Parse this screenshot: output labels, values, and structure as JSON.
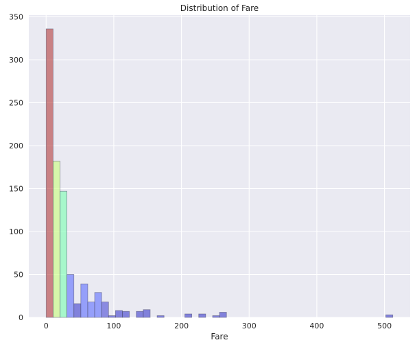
{
  "chart_data": {
    "type": "bar",
    "subtype": "histogram",
    "title": "Distribution of Fare",
    "xlabel": "Fare",
    "ylabel": "",
    "xlim": [
      -25.6,
      537.9
    ],
    "ylim": [
      0,
      352
    ],
    "xticks": [
      0,
      100,
      200,
      300,
      400,
      500
    ],
    "yticks": [
      0,
      50,
      100,
      150,
      200,
      250,
      300,
      350
    ],
    "grid": true,
    "legend": "none",
    "bin_width": 10.25,
    "bars": [
      {
        "x0": 0.0,
        "value": 336,
        "color": "#b33a3a"
      },
      {
        "x0": 10.25,
        "value": 182,
        "color": "#c8ff7a"
      },
      {
        "x0": 20.5,
        "value": 147,
        "color": "#7affb0"
      },
      {
        "x0": 30.75,
        "value": 50,
        "color": "#5b6cff"
      },
      {
        "x0": 41.0,
        "value": 16,
        "color": "#3a3acc"
      },
      {
        "x0": 51.25,
        "value": 39,
        "color": "#5b6cff"
      },
      {
        "x0": 61.5,
        "value": 18,
        "color": "#5b6cff"
      },
      {
        "x0": 71.75,
        "value": 29,
        "color": "#5b6cff"
      },
      {
        "x0": 82.0,
        "value": 18,
        "color": "#4a4ad6"
      },
      {
        "x0": 92.25,
        "value": 2,
        "color": "#3a3acc"
      },
      {
        "x0": 102.5,
        "value": 8,
        "color": "#3a3acc"
      },
      {
        "x0": 112.75,
        "value": 7,
        "color": "#3a3acc"
      },
      {
        "x0": 133.25,
        "value": 7,
        "color": "#3a3acc"
      },
      {
        "x0": 143.5,
        "value": 9,
        "color": "#3a3acc"
      },
      {
        "x0": 164.0,
        "value": 2,
        "color": "#3a3acc"
      },
      {
        "x0": 205.0,
        "value": 4,
        "color": "#3a3acc"
      },
      {
        "x0": 225.5,
        "value": 4,
        "color": "#3a3acc"
      },
      {
        "x0": 246.0,
        "value": 2,
        "color": "#3a3acc"
      },
      {
        "x0": 256.25,
        "value": 6,
        "color": "#3a3acc"
      },
      {
        "x0": 502.0,
        "value": 3,
        "color": "#3a3acc"
      }
    ]
  },
  "colors": {
    "plot_background": "#eaeaf2",
    "grid": "#ffffff",
    "bar_edge": "#505070"
  }
}
